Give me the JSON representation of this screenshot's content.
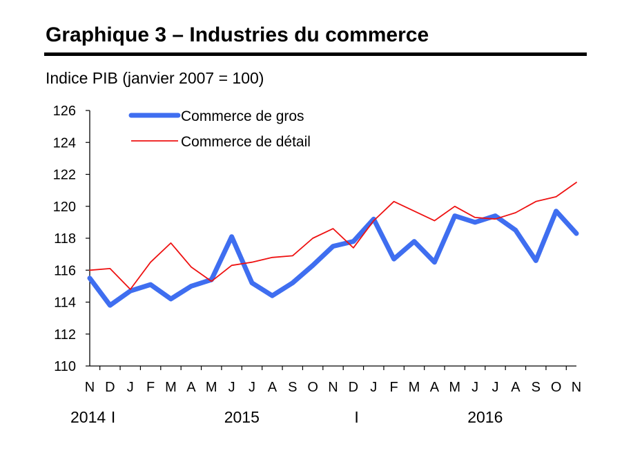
{
  "title": "Graphique 3 – Industries du commerce",
  "subtitle": "Indice PIB (janvier 2007 = 100)",
  "chart_data": {
    "type": "line",
    "x": [
      "N",
      "D",
      "J",
      "F",
      "M",
      "A",
      "M",
      "J",
      "J",
      "A",
      "S",
      "O",
      "N",
      "D",
      "J",
      "F",
      "M",
      "A",
      "M",
      "J",
      "J",
      "A",
      "S",
      "O",
      "N"
    ],
    "year_labels": [
      {
        "text": "2014",
        "index": 0
      },
      {
        "text": "2015",
        "index": 7.5
      },
      {
        "text": "2016",
        "index": 19.5
      }
    ],
    "year_separators": [
      1.5,
      13.5
    ],
    "ylim": [
      110,
      126
    ],
    "yticks": [
      110,
      112,
      114,
      116,
      118,
      120,
      122,
      124,
      126
    ],
    "series": [
      {
        "name": "Commerce de gros",
        "color": "#3f6ef0",
        "values": [
          115.5,
          113.8,
          114.7,
          115.1,
          114.2,
          115.0,
          115.4,
          118.1,
          115.2,
          114.4,
          115.2,
          116.3,
          117.5,
          117.8,
          119.2,
          116.7,
          117.8,
          116.5,
          119.4,
          119.0,
          119.4,
          118.5,
          116.6,
          119.7,
          118.3
        ]
      },
      {
        "name": "Commerce de détail",
        "color": "#ee1111",
        "values": [
          116.0,
          116.1,
          114.8,
          116.5,
          117.7,
          116.2,
          115.3,
          116.3,
          116.5,
          116.8,
          116.9,
          118.0,
          118.6,
          117.4,
          119.1,
          120.3,
          119.7,
          119.1,
          120.0,
          119.3,
          119.2,
          119.6,
          120.3,
          120.6,
          121.5
        ]
      }
    ],
    "legend": "top-left",
    "grid": false
  }
}
